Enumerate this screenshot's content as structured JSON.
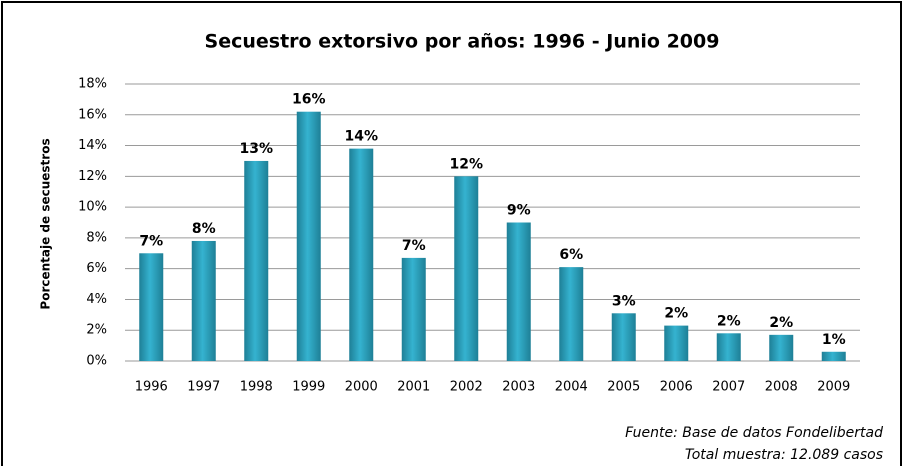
{
  "chart_data": {
    "type": "bar",
    "title": "Secuestro extorsivo por años: 1996 - Junio 2009",
    "y_axis_label": "Porcentaje de secuestros",
    "categories": [
      "1996",
      "1997",
      "1998",
      "1999",
      "2000",
      "2001",
      "2002",
      "2003",
      "2004",
      "2005",
      "2006",
      "2007",
      "2008",
      "2009"
    ],
    "values": [
      7.0,
      7.8,
      13.0,
      16.2,
      13.8,
      6.7,
      12.0,
      9.0,
      6.1,
      3.1,
      2.3,
      1.8,
      1.7,
      0.6
    ],
    "value_labels": [
      "7%",
      "8%",
      "13%",
      "16%",
      "14%",
      "7%",
      "12%",
      "9%",
      "6%",
      "3%",
      "2%",
      "2%",
      "2%",
      "1%"
    ],
    "color": "#35b3d0",
    "ylim": [
      0,
      18
    ],
    "yticks": [
      {
        "value": 0,
        "label": "0%"
      },
      {
        "value": 2,
        "label": "2%"
      },
      {
        "value": 4,
        "label": "4%"
      },
      {
        "value": 6,
        "label": "6%"
      },
      {
        "value": 8,
        "label": "8%"
      },
      {
        "value": 10,
        "label": "10%"
      },
      {
        "value": 12,
        "label": "12%"
      },
      {
        "value": 14,
        "label": "14%"
      },
      {
        "value": 16,
        "label": "16%"
      },
      {
        "value": 18,
        "label": "18%"
      }
    ],
    "grid": true,
    "source": "Fuente: Base de datos Fondelibertad",
    "note": "Total muestra: 12.089 casos"
  }
}
